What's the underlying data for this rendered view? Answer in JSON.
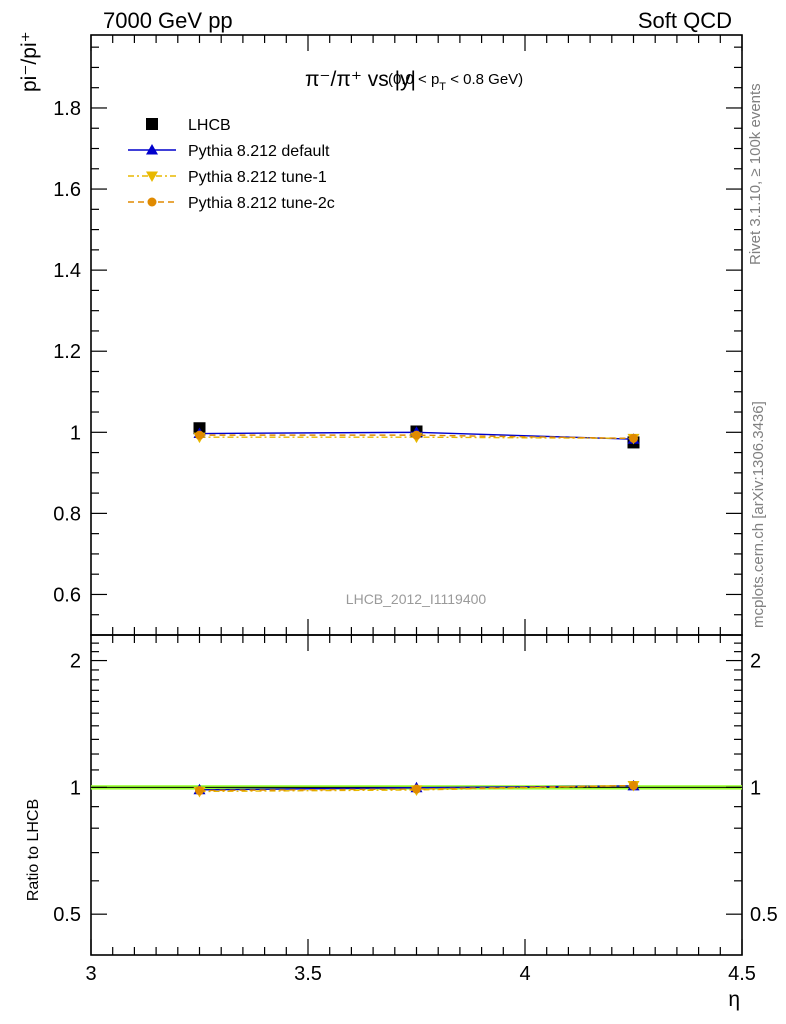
{
  "header": {
    "left": "7000 GeV pp",
    "right": "Soft QCD"
  },
  "side_labels": {
    "rivet": "Rivet 3.1.10, ≥ 100k events",
    "mcplots": "mcplots.cern.ch [arXiv:1306.3436]"
  },
  "chart_data": [
    {
      "type": "line",
      "panel": "main",
      "title_main": "π⁻/π⁺ vs |y|",
      "title_sub": "(0.0 < p",
      "title_sub_index": "T",
      "title_sub_tail": " < 0.8 GeV)",
      "ylabel": "pi⁻/pi⁺",
      "watermark": "LHCB_2012_I1119400",
      "xlim": [
        3.0,
        4.5
      ],
      "ylim": [
        0.5,
        1.98
      ],
      "yticks": [
        0.6,
        0.8,
        1.0,
        1.2,
        1.4,
        1.6,
        1.8
      ],
      "ytick_labels": [
        "0.6",
        "0.8",
        "1",
        "1.2",
        "1.4",
        "1.6",
        "1.8"
      ],
      "x": [
        3.25,
        3.75,
        4.25
      ],
      "series": [
        {
          "name": "LHCB",
          "values": [
            1.01,
            1.002,
            0.975
          ],
          "color": "#000000",
          "marker": "square",
          "line": "none"
        },
        {
          "name": "Pythia 8.212 default",
          "values": [
            0.997,
            1.0,
            0.983
          ],
          "color": "#0000cc",
          "marker": "triangle-up",
          "line": "solid"
        },
        {
          "name": "Pythia 8.212 tune-1",
          "values": [
            0.988,
            0.988,
            0.985
          ],
          "color": "#e8b800",
          "marker": "triangle-down",
          "line": "dashdot"
        },
        {
          "name": "Pythia 8.212 tune-2c",
          "values": [
            0.993,
            0.993,
            0.985
          ],
          "color": "#e08a00",
          "marker": "circle",
          "line": "dashed"
        }
      ]
    },
    {
      "type": "line",
      "panel": "ratio",
      "ylabel": "Ratio to LHCB",
      "xlabel": "η",
      "xlim": [
        3.0,
        4.5
      ],
      "xticks": [
        3.0,
        3.5,
        4.0,
        4.5
      ],
      "xtick_labels": [
        "3",
        "3.5",
        "4",
        "4.5"
      ],
      "ylim": [
        0.4,
        2.3
      ],
      "yscale": "log",
      "yticks": [
        0.5,
        1.0,
        2.0
      ],
      "ytick_labels": [
        "0.5",
        "1",
        "2"
      ],
      "band_color": "#99ff33",
      "x": [
        3.25,
        3.75,
        4.25
      ],
      "series": [
        {
          "name": "Pythia 8.212 default",
          "values": [
            0.987,
            0.998,
            1.008
          ],
          "color": "#0000cc",
          "marker": "triangle-up",
          "line": "solid"
        },
        {
          "name": "Pythia 8.212 tune-1",
          "values": [
            0.978,
            0.986,
            1.01
          ],
          "color": "#e8b800",
          "marker": "triangle-down",
          "line": "dashdot"
        },
        {
          "name": "Pythia 8.212 tune-2c",
          "values": [
            0.983,
            0.991,
            1.01
          ],
          "color": "#e08a00",
          "marker": "circle",
          "line": "dashed"
        }
      ]
    }
  ]
}
